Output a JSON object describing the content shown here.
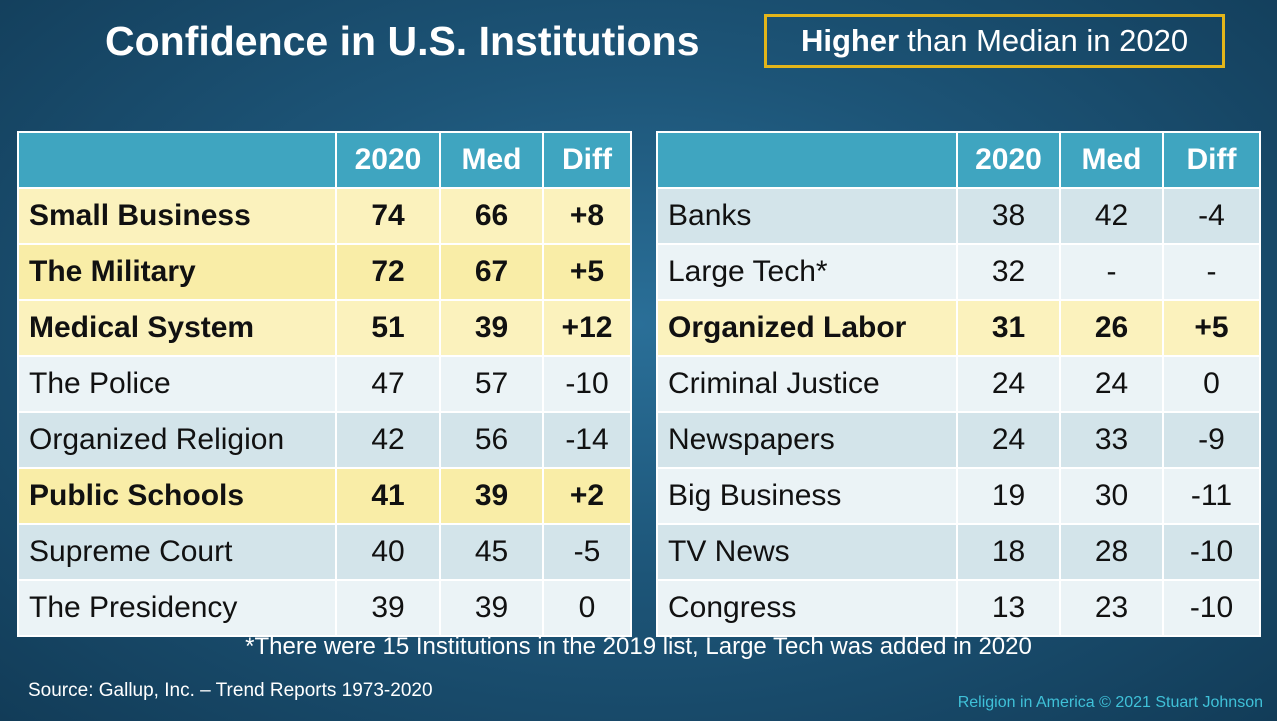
{
  "title": "Confidence in U.S. Institutions",
  "legend": {
    "bold": "Higher",
    "rest": "than Median in 2020"
  },
  "left_table": {
    "headers": [
      "",
      "2020",
      "Med",
      "Diff"
    ],
    "rows": [
      {
        "name": "Small Business",
        "y2020": "74",
        "med": "66",
        "diff": "+8",
        "highlight": true
      },
      {
        "name": "The Military",
        "y2020": "72",
        "med": "67",
        "diff": "+5",
        "highlight": true
      },
      {
        "name": "Medical System",
        "y2020": "51",
        "med": "39",
        "diff": "+12",
        "highlight": true
      },
      {
        "name": "The Police",
        "y2020": "47",
        "med": "57",
        "diff": "-10",
        "highlight": false
      },
      {
        "name": "Organized Religion",
        "y2020": "42",
        "med": "56",
        "diff": "-14",
        "highlight": false
      },
      {
        "name": "Public Schools",
        "y2020": "41",
        "med": "39",
        "diff": "+2",
        "highlight": true
      },
      {
        "name": "Supreme Court",
        "y2020": "40",
        "med": "45",
        "diff": "-5",
        "highlight": false
      },
      {
        "name": "The Presidency",
        "y2020": "39",
        "med": "39",
        "diff": "0",
        "highlight": false
      }
    ]
  },
  "right_table": {
    "headers": [
      "",
      "2020",
      "Med",
      "Diff"
    ],
    "rows": [
      {
        "name": "Banks",
        "y2020": "38",
        "med": "42",
        "diff": "-4",
        "highlight": false
      },
      {
        "name": "Large Tech*",
        "y2020": "32",
        "med": "-",
        "diff": "-",
        "highlight": false
      },
      {
        "name": "Organized Labor",
        "y2020": "31",
        "med": "26",
        "diff": "+5",
        "highlight": true
      },
      {
        "name": "Criminal Justice",
        "y2020": "24",
        "med": "24",
        "diff": "0",
        "highlight": false
      },
      {
        "name": "Newspapers",
        "y2020": "24",
        "med": "33",
        "diff": "-9",
        "highlight": false
      },
      {
        "name": "Big Business",
        "y2020": "19",
        "med": "30",
        "diff": "-11",
        "highlight": false
      },
      {
        "name": "TV News",
        "y2020": "18",
        "med": "28",
        "diff": "-10",
        "highlight": false
      },
      {
        "name": "Congress",
        "y2020": "13",
        "med": "23",
        "diff": "-10",
        "highlight": false
      }
    ]
  },
  "footnote": "*There were 15 Institutions in the 2019 list, Large Tech was added in 2020",
  "source": "Source: Gallup, Inc. – Trend Reports 1973-2020",
  "credit": "Religion in America © 2021 Stuart Johnson",
  "colors": {
    "header": "#3fa5c0",
    "highlight": "#f9eda7",
    "legend_border": "#e3b51a",
    "credit": "#3fc1d8"
  }
}
